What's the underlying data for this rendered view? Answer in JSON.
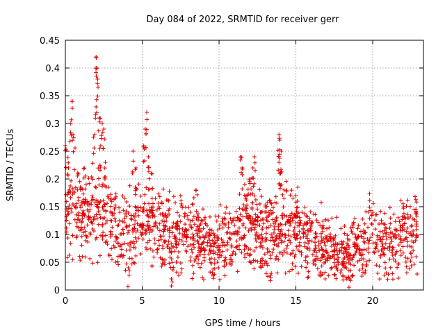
{
  "chart_data": {
    "type": "scatter",
    "title": "Day 084 of 2022, SRMTID for receiver gerr",
    "xlabel": "GPS time / hours",
    "ylabel": "SRMTID / TECUs",
    "xlim": [
      0,
      23.3
    ],
    "ylim": [
      0,
      0.45
    ],
    "x_ticks": [
      0,
      5,
      10,
      15,
      20
    ],
    "x_tick_labels": [
      "0",
      "5",
      "10",
      "15",
      "20"
    ],
    "y_ticks": [
      0,
      0.05,
      0.1,
      0.15,
      0.2,
      0.25,
      0.3,
      0.35,
      0.4,
      0.45
    ],
    "y_tick_labels": [
      "0",
      "0.05",
      "0.1",
      "0.15",
      "0.2",
      "0.25",
      "0.3",
      "0.35",
      "0.4",
      "0.45"
    ],
    "grid": true,
    "marker": "+",
    "color": "#e00000",
    "series": [
      {
        "name": "gerr",
        "envelope": [
          {
            "x": 0.0,
            "y": 0.15
          },
          {
            "x": 0.5,
            "y": 0.16
          },
          {
            "x": 1.0,
            "y": 0.14
          },
          {
            "x": 1.5,
            "y": 0.13
          },
          {
            "x": 2.0,
            "y": 0.15
          },
          {
            "x": 2.5,
            "y": 0.14
          },
          {
            "x": 3.0,
            "y": 0.12
          },
          {
            "x": 3.5,
            "y": 0.11
          },
          {
            "x": 4.0,
            "y": 0.1
          },
          {
            "x": 4.5,
            "y": 0.11
          },
          {
            "x": 5.0,
            "y": 0.14
          },
          {
            "x": 5.5,
            "y": 0.13
          },
          {
            "x": 6.0,
            "y": 0.11
          },
          {
            "x": 6.5,
            "y": 0.1
          },
          {
            "x": 7.0,
            "y": 0.09
          },
          {
            "x": 7.5,
            "y": 0.1
          },
          {
            "x": 8.0,
            "y": 0.1
          },
          {
            "x": 8.5,
            "y": 0.09
          },
          {
            "x": 9.0,
            "y": 0.09
          },
          {
            "x": 9.5,
            "y": 0.08
          },
          {
            "x": 10.0,
            "y": 0.08
          },
          {
            "x": 10.5,
            "y": 0.09
          },
          {
            "x": 11.0,
            "y": 0.1
          },
          {
            "x": 11.5,
            "y": 0.11
          },
          {
            "x": 12.0,
            "y": 0.12
          },
          {
            "x": 12.5,
            "y": 0.11
          },
          {
            "x": 13.0,
            "y": 0.1
          },
          {
            "x": 13.5,
            "y": 0.11
          },
          {
            "x": 14.0,
            "y": 0.12
          },
          {
            "x": 14.5,
            "y": 0.11
          },
          {
            "x": 15.0,
            "y": 0.11
          },
          {
            "x": 15.5,
            "y": 0.1
          },
          {
            "x": 16.0,
            "y": 0.09
          },
          {
            "x": 16.5,
            "y": 0.08
          },
          {
            "x": 17.0,
            "y": 0.07
          },
          {
            "x": 17.5,
            "y": 0.07
          },
          {
            "x": 18.0,
            "y": 0.07
          },
          {
            "x": 18.5,
            "y": 0.06
          },
          {
            "x": 19.0,
            "y": 0.08
          },
          {
            "x": 19.5,
            "y": 0.09
          },
          {
            "x": 20.0,
            "y": 0.1
          },
          {
            "x": 20.5,
            "y": 0.08
          },
          {
            "x": 21.0,
            "y": 0.08
          },
          {
            "x": 21.5,
            "y": 0.09
          },
          {
            "x": 22.0,
            "y": 0.1
          },
          {
            "x": 22.5,
            "y": 0.09
          },
          {
            "x": 22.9,
            "y": 0.1
          }
        ],
        "peaks": [
          {
            "x": 0.0,
            "y": 0.26
          },
          {
            "x": 0.2,
            "y": 0.22
          },
          {
            "x": 0.35,
            "y": 0.3
          },
          {
            "x": 0.45,
            "y": 0.34
          },
          {
            "x": 0.5,
            "y": 0.28
          },
          {
            "x": 2.0,
            "y": 0.42
          },
          {
            "x": 2.05,
            "y": 0.4
          },
          {
            "x": 2.1,
            "y": 0.38
          },
          {
            "x": 2.0,
            "y": 0.33
          },
          {
            "x": 2.2,
            "y": 0.31
          },
          {
            "x": 2.4,
            "y": 0.3
          },
          {
            "x": 2.5,
            "y": 0.29
          },
          {
            "x": 1.9,
            "y": 0.28
          },
          {
            "x": 2.3,
            "y": 0.26
          },
          {
            "x": 2.6,
            "y": 0.23
          },
          {
            "x": 4.4,
            "y": 0.25
          },
          {
            "x": 4.6,
            "y": 0.22
          },
          {
            "x": 5.3,
            "y": 0.32
          },
          {
            "x": 5.2,
            "y": 0.29
          },
          {
            "x": 5.1,
            "y": 0.26
          },
          {
            "x": 5.4,
            "y": 0.24
          },
          {
            "x": 5.6,
            "y": 0.21
          },
          {
            "x": 11.4,
            "y": 0.24
          },
          {
            "x": 11.5,
            "y": 0.22
          },
          {
            "x": 12.2,
            "y": 0.22
          },
          {
            "x": 12.3,
            "y": 0.24
          },
          {
            "x": 12.0,
            "y": 0.2
          },
          {
            "x": 13.9,
            "y": 0.28
          },
          {
            "x": 13.95,
            "y": 0.27
          },
          {
            "x": 14.05,
            "y": 0.25
          },
          {
            "x": 13.9,
            "y": 0.23
          },
          {
            "x": 14.0,
            "y": 0.21
          },
          {
            "x": 15.0,
            "y": 0.17
          },
          {
            "x": 15.1,
            "y": 0.16
          },
          {
            "x": 7.5,
            "y": 0.17
          },
          {
            "x": 8.5,
            "y": 0.18
          },
          {
            "x": 22.0,
            "y": 0.15
          },
          {
            "x": 20.0,
            "y": 0.14
          },
          {
            "x": 6.9,
            "y": 0.02
          },
          {
            "x": 4.1,
            "y": 0.04
          },
          {
            "x": 18.5,
            "y": 0.02
          },
          {
            "x": 13.4,
            "y": 0.03
          }
        ]
      }
    ]
  }
}
